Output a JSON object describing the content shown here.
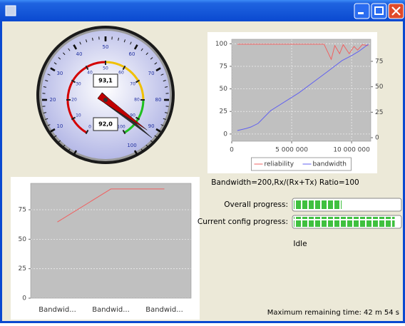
{
  "gauge": {
    "scale": [
      0,
      100
    ],
    "outer_ticks": [
      10,
      20,
      30,
      40,
      50,
      60,
      70,
      80,
      90,
      100
    ],
    "inner_ticks": [
      0,
      10,
      20,
      30,
      40,
      50,
      60,
      70,
      80,
      90,
      100
    ],
    "zones": [
      {
        "from": 0,
        "to": 50,
        "color": "#d40000"
      },
      {
        "from": 50,
        "to": 80,
        "color": "#f0c000"
      },
      {
        "from": 80,
        "to": 100,
        "color": "#20c020"
      }
    ],
    "needles": [
      {
        "value": 93.1,
        "label": "93,1",
        "color": "#303030"
      },
      {
        "value": 92.0,
        "label": "92,0",
        "color": "#c00000"
      }
    ]
  },
  "chart_data": [
    {
      "type": "line",
      "series": [
        {
          "name": "reliability",
          "color": "#f06060",
          "x": [
            470000,
            7700000,
            8300000,
            8600000,
            9000000,
            9300000,
            9800000,
            10200000,
            10500000,
            10900000,
            11400000
          ],
          "values": [
            99.5,
            99.5,
            82.7,
            98,
            89,
            99,
            89,
            97,
            93,
            99,
            98
          ]
        },
        {
          "name": "bandwidth",
          "color": "#6060f0",
          "axis": "y2",
          "x": [
            470000,
            1200000,
            1600000,
            2200000,
            3250000,
            5600000,
            8000000,
            9200000,
            10000000,
            10600000,
            11400000
          ],
          "values": [
            7,
            9,
            10.5,
            14,
            26.6,
            44,
            65,
            75.7,
            80.6,
            84.8,
            91.8
          ]
        }
      ],
      "xlim": [
        0,
        11600000
      ],
      "xticks": [
        0,
        {
          "value": 5000000,
          "label": "5 000 000"
        },
        {
          "value": 10000000,
          "label": "10 000 000"
        }
      ],
      "ylim": [
        -8,
        105
      ],
      "yticks": [
        0,
        25,
        50,
        75,
        100
      ],
      "y2lim": [
        -3.5,
        96.7
      ],
      "y2ticks": [
        0,
        25,
        50,
        75
      ],
      "grid": true,
      "legend": "bottom"
    },
    {
      "type": "line",
      "categories": [
        "Bandwid...",
        "Bandwid...",
        "Bandwid..."
      ],
      "series": [
        {
          "color": "#f06060",
          "values": [
            64.6,
            92.6,
            92.6
          ]
        }
      ],
      "ylim": [
        0,
        97.4
      ],
      "yticks": [
        0,
        25,
        50,
        75
      ],
      "grid": true
    }
  ],
  "status": {
    "caption": "Bandwidth=200,Rx/(Rx+Tx) Ratio=100",
    "progress_range": [
      0,
      100
    ],
    "progress": [
      {
        "label": "Overall progress:",
        "value": 45
      },
      {
        "label": "Current config progress:",
        "value": 95
      }
    ],
    "state": "Idle",
    "remaining": "Maximum remaining time: 42 m 54 s"
  }
}
